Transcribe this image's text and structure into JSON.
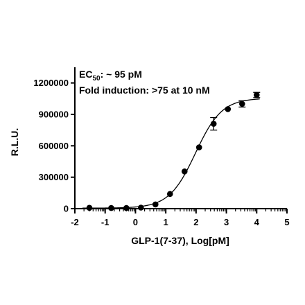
{
  "chart_data": {
    "type": "scatter",
    "xlabel": "GLP-1(7-37), Log[pM]",
    "ylabel": "R.L.U.",
    "xlim": [
      -2,
      5
    ],
    "ylim": [
      0,
      1350000
    ],
    "x_ticks": [
      -2,
      -1,
      0,
      1,
      2,
      3,
      4,
      5
    ],
    "x_tick_labels": [
      "-2",
      "-1",
      "0",
      "1",
      "2",
      "3",
      "4",
      "5"
    ],
    "y_ticks": [
      0,
      300000,
      600000,
      900000,
      1200000
    ],
    "y_tick_labels": [
      "0",
      "300000",
      "600000",
      "900000",
      "1200000"
    ],
    "annotations": {
      "ec50_prefix": "EC",
      "ec50_subscript": "50",
      "ec50_value": ": ~ 95 pM",
      "fold_induction": "Fold induction: >75 at 10 nM"
    },
    "series": [
      {
        "points": [
          {
            "x": -1.52,
            "y": 8000
          },
          {
            "x": -0.8,
            "y": 6000
          },
          {
            "x": -0.3,
            "y": 6000
          },
          {
            "x": 0.18,
            "y": 10000
          },
          {
            "x": 0.66,
            "y": 40000
          },
          {
            "x": 1.14,
            "y": 140000
          },
          {
            "x": 1.62,
            "y": 355000
          },
          {
            "x": 2.1,
            "y": 585000
          },
          {
            "x": 2.58,
            "y": 810000,
            "err": 60000
          },
          {
            "x": 3.05,
            "y": 950000
          },
          {
            "x": 3.52,
            "y": 1000000,
            "err": 30000
          },
          {
            "x": 4.0,
            "y": 1085000,
            "err": 25000
          }
        ],
        "fit": {
          "bottom": 5000,
          "top": 1055000,
          "logEC50": 1.98,
          "hill": 1.0
        }
      }
    ]
  }
}
